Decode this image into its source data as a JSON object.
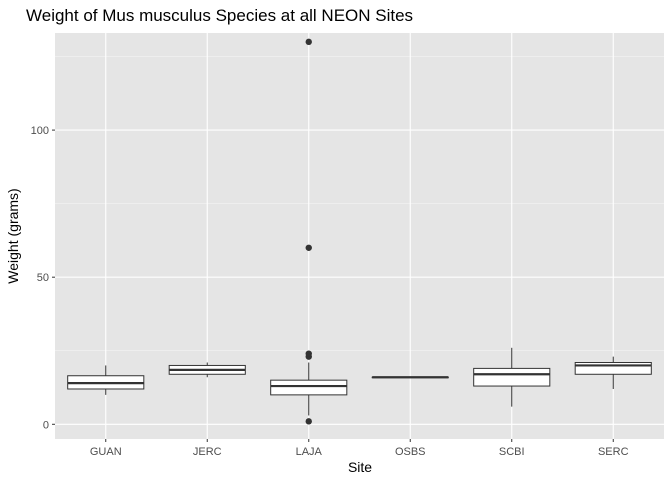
{
  "chart_data": {
    "type": "boxplot",
    "title": "Weight of Mus musculus Species at all NEON Sites",
    "xlabel": "Site",
    "ylabel": "Weight (grams)",
    "ylim": [
      -5,
      133
    ],
    "yticks": [
      0,
      50,
      100
    ],
    "grid": true,
    "legend": "none",
    "colors": {
      "panel": "#E5E5E5",
      "grid_major": "#FFFFFF",
      "box_fill": "#FFFFFF",
      "box_line": "#333333",
      "outlier": "#333333",
      "tick_label": "#4D4D4D"
    },
    "categories": [
      "GUAN",
      "JERC",
      "LAJA",
      "OSBS",
      "SCBI",
      "SERC"
    ],
    "boxes": [
      {
        "site": "GUAN",
        "min": 10,
        "q1": 12,
        "median": 14,
        "q3": 16.5,
        "max": 20,
        "outliers": []
      },
      {
        "site": "JERC",
        "min": 16,
        "q1": 17,
        "median": 18.5,
        "q3": 20,
        "max": 21,
        "outliers": []
      },
      {
        "site": "LAJA",
        "min": 3,
        "q1": 10,
        "median": 13,
        "q3": 15,
        "max": 21,
        "outliers": [
          1,
          23,
          24,
          60,
          130
        ]
      },
      {
        "site": "OSBS",
        "min": 16,
        "q1": 16,
        "median": 16,
        "q3": 16,
        "max": 16,
        "outliers": []
      },
      {
        "site": "SCBI",
        "min": 6,
        "q1": 13,
        "median": 17,
        "q3": 19,
        "max": 26,
        "outliers": []
      },
      {
        "site": "SERC",
        "min": 12,
        "q1": 17,
        "median": 20,
        "q3": 21,
        "max": 23,
        "outliers": []
      }
    ]
  }
}
